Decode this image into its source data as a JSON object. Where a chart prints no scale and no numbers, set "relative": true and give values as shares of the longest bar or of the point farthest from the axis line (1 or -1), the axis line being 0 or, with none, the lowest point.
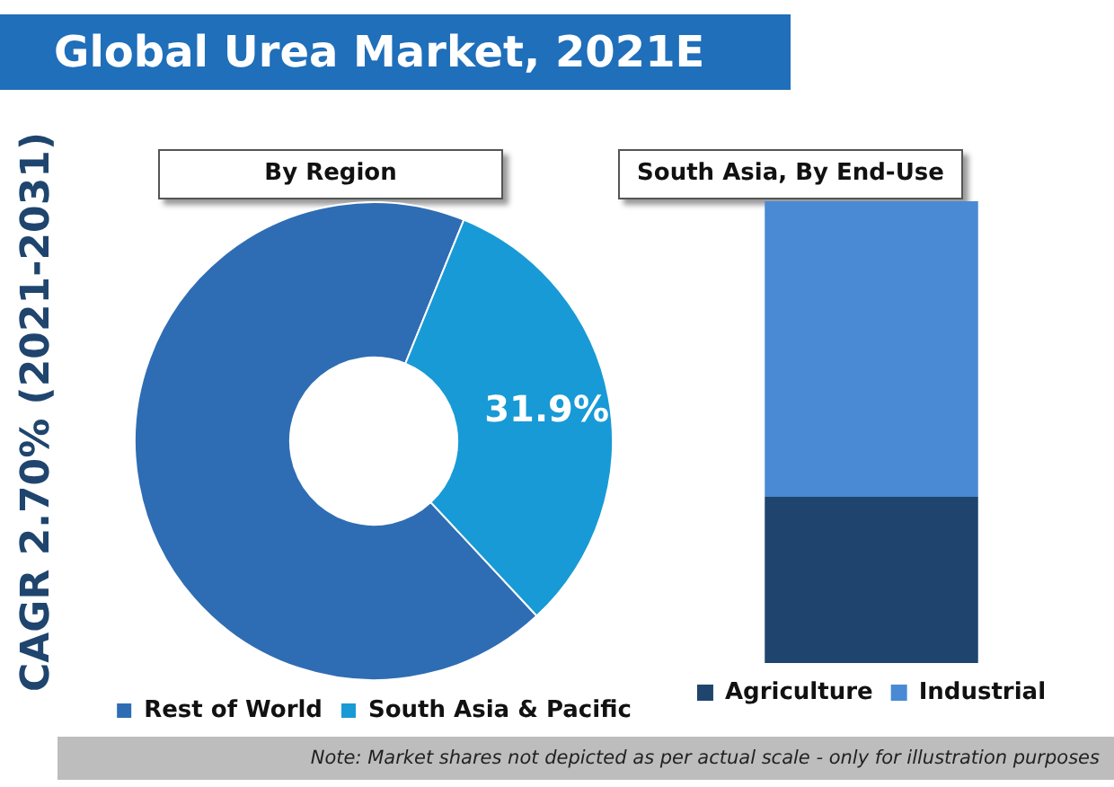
{
  "chart_data": [
    {
      "type": "donut",
      "title": "Global Urea Market, 2021E",
      "subtitle": "By Region",
      "categories": [
        "Rest of World",
        "South Asia & Pacific"
      ],
      "values": [
        68.1,
        31.9
      ],
      "colors": [
        "#2e6db4",
        "#189ad6"
      ],
      "value_labels": [
        null,
        "31.9%"
      ],
      "legend": "bottom",
      "annotations": [
        "CAGR 2.70% (2021-2031)"
      ]
    },
    {
      "type": "bar",
      "title": "South Asia, By End-Use",
      "relative": true,
      "stacked": true,
      "categories": [
        null
      ],
      "legend": "bottom",
      "series": [
        {
          "name": "Agriculture",
          "color": "#1f456e",
          "values": [
            0.36
          ]
        },
        {
          "name": "Industrial",
          "color": "#4a8ad4",
          "values": [
            0.64
          ]
        }
      ],
      "annotations": [
        "Note: Market shares not depicted as per actual scale - only for illustration purposes"
      ]
    }
  ]
}
